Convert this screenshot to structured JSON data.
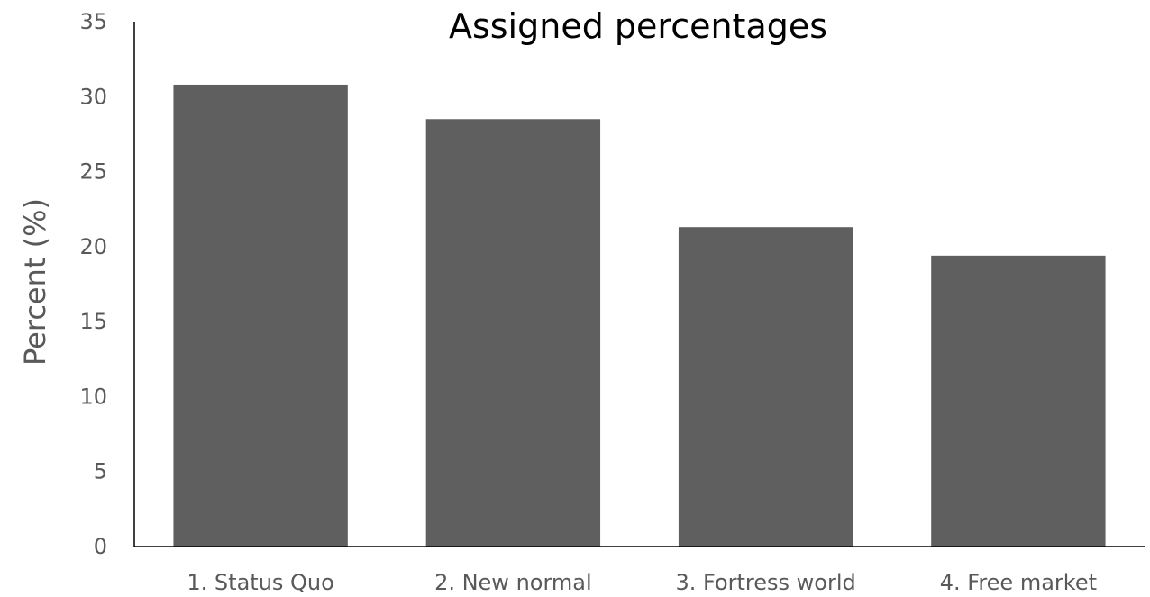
{
  "chart_data": {
    "type": "bar",
    "title": "Assigned percentages",
    "xlabel": "",
    "ylabel": "Percent (%)",
    "categories": [
      "1. Status Quo",
      "2. New normal",
      "3. Fortress world",
      "4. Free market"
    ],
    "values": [
      30.8,
      28.5,
      21.3,
      19.4
    ],
    "ylim": [
      0,
      35
    ],
    "yticks": [
      0,
      5,
      10,
      15,
      20,
      25,
      30,
      35
    ],
    "grid": false,
    "legend": "none",
    "bar_color": "#5f5f5f",
    "axis_color": "#000000",
    "tick_label_color": "#595959"
  }
}
